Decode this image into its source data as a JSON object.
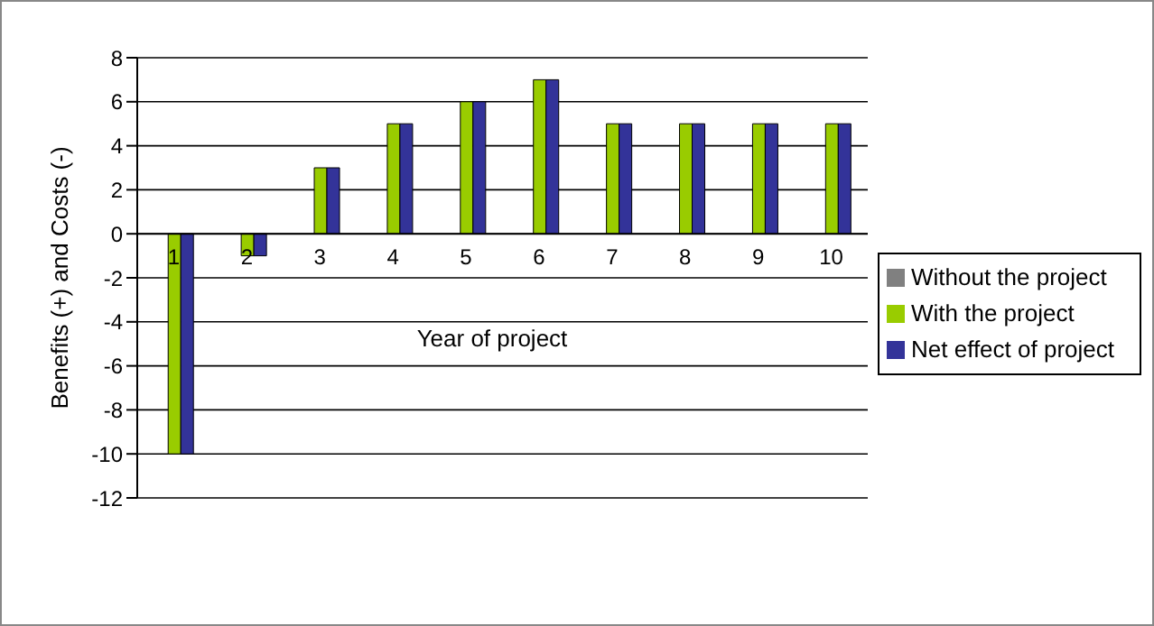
{
  "chart_data": {
    "type": "bar",
    "xlabel": "Year of project",
    "ylabel": "Benefits (+) and Costs (-)",
    "categories": [
      "1",
      "2",
      "3",
      "4",
      "5",
      "6",
      "7",
      "8",
      "9",
      "10"
    ],
    "series": [
      {
        "name": "Without the project",
        "color": "#808080",
        "values": [
          0,
          0,
          0,
          0,
          0,
          0,
          0,
          0,
          0,
          0
        ]
      },
      {
        "name": "With the project",
        "color": "#99cc00",
        "values": [
          -10,
          -1,
          3,
          5,
          6,
          7,
          5,
          5,
          5,
          5
        ]
      },
      {
        "name": "Net effect of project",
        "color": "#333399",
        "values": [
          -10,
          -1,
          3,
          5,
          6,
          7,
          5,
          5,
          5,
          5
        ]
      }
    ],
    "ylim": [
      -12,
      8
    ],
    "yticks": [
      -12,
      -10,
      -8,
      -6,
      -4,
      -2,
      0,
      2,
      4,
      6,
      8
    ],
    "grid": "y",
    "legend": "right"
  }
}
